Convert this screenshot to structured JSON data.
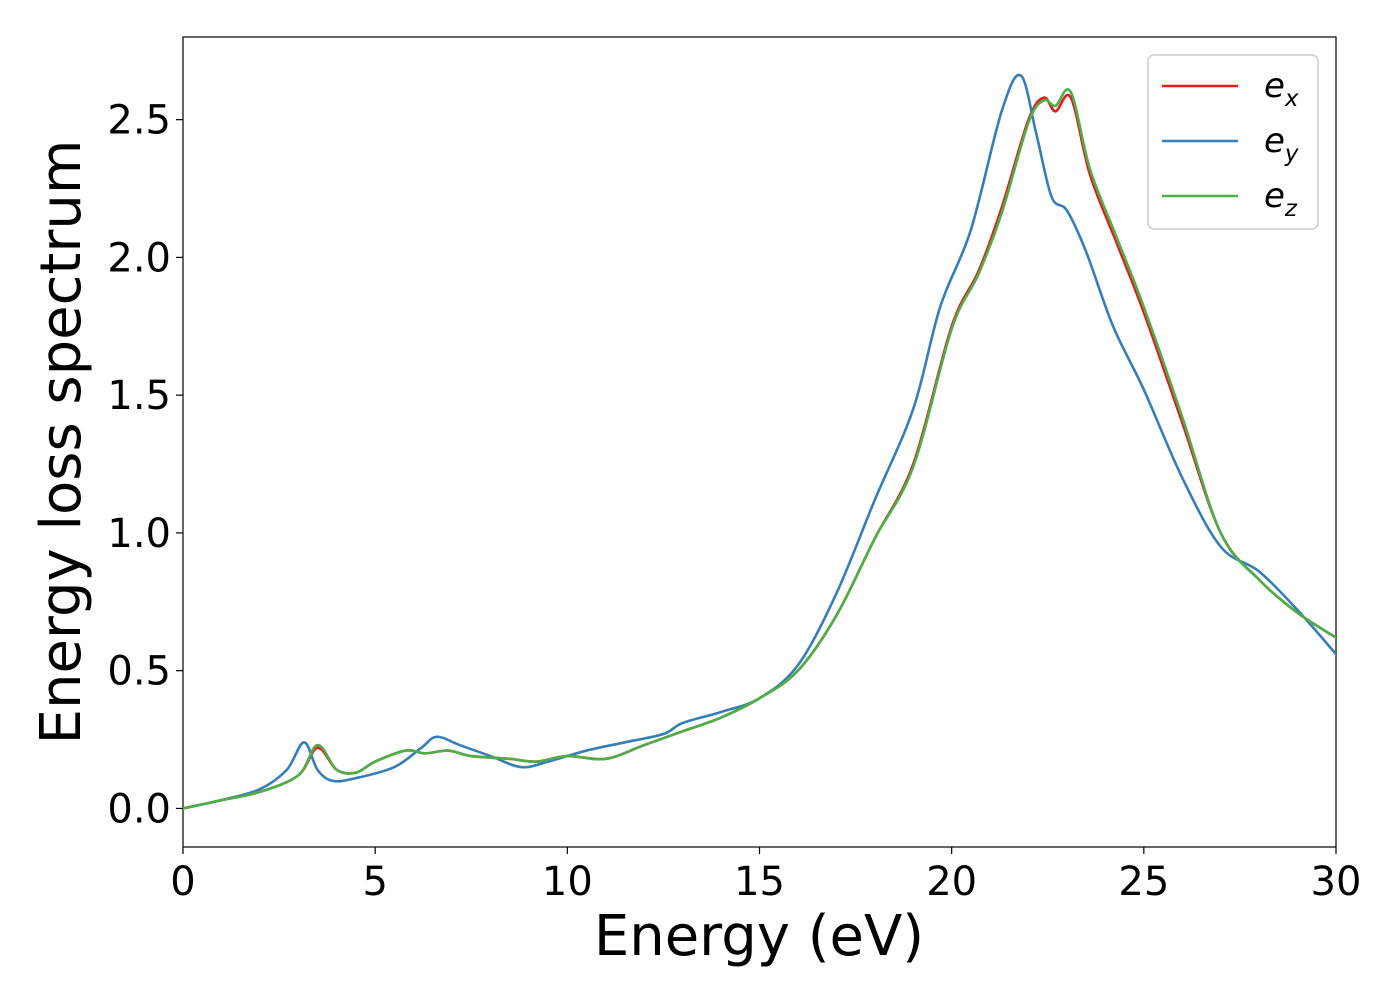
{
  "chart_data": {
    "type": "line",
    "xlabel": "Energy (eV)",
    "ylabel": "Energy loss spectrum",
    "xlim": [
      0,
      30
    ],
    "ylim": [
      -0.14,
      2.8
    ],
    "x_ticks": [
      "0",
      "5",
      "10",
      "15",
      "20",
      "25",
      "30"
    ],
    "y_ticks": [
      "0.0",
      "0.5",
      "1.0",
      "1.5",
      "2.0",
      "2.5"
    ],
    "x_tick_values": [
      0,
      5,
      10,
      15,
      20,
      25,
      30
    ],
    "y_tick_values": [
      0.0,
      0.5,
      1.0,
      1.5,
      2.0,
      2.5
    ],
    "grid": false,
    "legend_position": "top-right",
    "series": [
      {
        "name": "e_x",
        "label_base": "e",
        "label_sub": "x",
        "color": "#e41a1c",
        "x": [
          0,
          1,
          2,
          3,
          3.5,
          4.0,
          4.5,
          5,
          5.8,
          6.3,
          6.9,
          7.5,
          8.5,
          9.2,
          10,
          11,
          12,
          13,
          14,
          15,
          16,
          17,
          18,
          19,
          20,
          20.7,
          21.3,
          22.0,
          22.4,
          22.7,
          23.1,
          23.6,
          24.3,
          25,
          26,
          27,
          28,
          29,
          30
        ],
        "y": [
          0.0,
          0.03,
          0.06,
          0.12,
          0.22,
          0.14,
          0.13,
          0.17,
          0.21,
          0.2,
          0.21,
          0.19,
          0.18,
          0.17,
          0.19,
          0.18,
          0.23,
          0.28,
          0.33,
          0.4,
          0.5,
          0.7,
          0.98,
          1.25,
          1.75,
          1.95,
          2.18,
          2.5,
          2.58,
          2.53,
          2.58,
          2.3,
          2.05,
          1.8,
          1.4,
          1.0,
          0.83,
          0.71,
          0.62
        ]
      },
      {
        "name": "e_y",
        "label_base": "e",
        "label_sub": "y",
        "color": "#377eb8",
        "x": [
          0,
          1,
          2,
          2.7,
          3.15,
          3.5,
          3.9,
          4.5,
          5.5,
          6.2,
          6.6,
          7.2,
          8.0,
          8.8,
          9.5,
          10.5,
          11.5,
          12.5,
          13.0,
          14.0,
          15.0,
          16.0,
          17.0,
          18.0,
          19.0,
          19.7,
          20.5,
          21.3,
          21.8,
          22.2,
          22.6,
          23.0,
          23.5,
          24.2,
          25.0,
          26.0,
          27.0,
          28.0,
          29.0,
          30.0
        ],
        "y": [
          0.0,
          0.03,
          0.07,
          0.14,
          0.24,
          0.14,
          0.1,
          0.11,
          0.15,
          0.22,
          0.26,
          0.23,
          0.19,
          0.15,
          0.17,
          0.21,
          0.24,
          0.27,
          0.31,
          0.35,
          0.4,
          0.52,
          0.78,
          1.12,
          1.45,
          1.82,
          2.1,
          2.53,
          2.66,
          2.45,
          2.22,
          2.17,
          2.02,
          1.75,
          1.52,
          1.2,
          0.95,
          0.86,
          0.72,
          0.56
        ]
      },
      {
        "name": "e_z",
        "label_base": "e",
        "label_sub": "z",
        "color": "#4daf4a",
        "x": [
          0,
          1,
          2,
          3,
          3.5,
          4.0,
          4.5,
          5,
          5.8,
          6.3,
          6.9,
          7.5,
          8.5,
          9.2,
          10,
          11,
          12,
          13,
          14,
          15,
          16,
          17,
          18,
          19,
          20,
          20.7,
          21.3,
          22.0,
          22.4,
          22.7,
          23.1,
          23.6,
          24.3,
          25,
          26,
          27,
          28,
          29,
          30
        ],
        "y": [
          0.0,
          0.03,
          0.06,
          0.12,
          0.23,
          0.14,
          0.13,
          0.17,
          0.21,
          0.2,
          0.21,
          0.19,
          0.18,
          0.17,
          0.19,
          0.18,
          0.23,
          0.28,
          0.33,
          0.4,
          0.5,
          0.7,
          0.98,
          1.24,
          1.74,
          1.94,
          2.16,
          2.49,
          2.57,
          2.55,
          2.6,
          2.32,
          2.07,
          1.82,
          1.42,
          1.0,
          0.83,
          0.71,
          0.62
        ]
      }
    ]
  }
}
